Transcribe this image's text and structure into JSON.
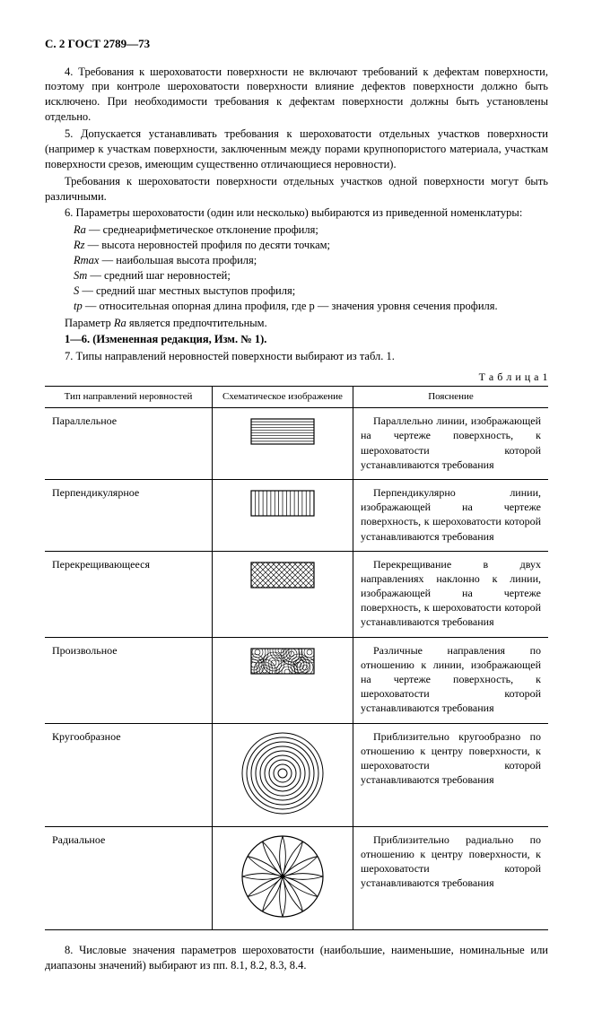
{
  "header": "С. 2 ГОСТ 2789—73",
  "paras": {
    "p4": "4. Требования к шероховатости поверхности не включают требований к дефектам поверхности, поэтому при контроле шероховатости поверхности влияние дефектов поверхности должно быть исключено. При необходимости требования к дефектам поверхности должны быть установлены отдельно.",
    "p5a": "5. Допускается устанавливать требования к шероховатости отдельных участков поверхности (например к участкам поверхности, заключенным между порами крупнопористого материала, участкам поверхности срезов, имеющим существенно отличающиеся неровности).",
    "p5b": "Требования к шероховатости поверхности отдельных участков одной поверхности могут быть различными.",
    "p6": "6. Параметры шероховатости (один или несколько) выбираются из приведенной номенклатуры:",
    "params": {
      "Ra": "среднеарифметическое отклонение профиля;",
      "Rz": "высота неровностей профиля по десяти точкам;",
      "Rmax": "наибольшая высота профиля;",
      "Sm": "средний шаг неровностей;",
      "S": "средний шаг местных выступов профиля;",
      "tp": "относительная опорная длина профиля, где p — значения уровня сечения профиля."
    },
    "p6b": "Параметр Ra является предпочтительным.",
    "p6c": "1—6. (Измененная редакция, Изм. № 1).",
    "p7": "7. Типы направлений неровностей поверхности выбирают из табл. 1.",
    "p8": "8. Числовые значения параметров шероховатости (наибольшие, наименьшие, номинальные или диапазоны значений) выбирают из пп. 8.1, 8.2, 8.3, 8.4."
  },
  "table": {
    "caption": "Т а б л и ц а 1",
    "headers": [
      "Тип направлений неровностей",
      "Схематическое изображение",
      "Пояснение"
    ],
    "rows": [
      {
        "type": "Параллельное",
        "desc": "Параллельно линии, изображающей на чертеже поверхность, к шероховатости которой устанавливаются требования"
      },
      {
        "type": "Перпендикулярное",
        "desc": "Перпендикулярно линии, изображающей на чертеже поверхность, к шероховатости которой устанавливаются требования"
      },
      {
        "type": "Перекрещивающееся",
        "desc": "Перекрещивание в двух направлениях наклонно к линии, изображающей на чертеже поверхность, к шероховатости которой устанавливаются требования"
      },
      {
        "type": "Произвольное",
        "desc": "Различные направления по отношению к линии, изображающей на чертеже поверхность, к шероховатости которой устанавливаются требования"
      },
      {
        "type": "Кругообразное",
        "desc": "Приблизительно кругообразно по отношению к центру поверхности, к шероховатости которой устанавливаются требования"
      },
      {
        "type": "Радиальное",
        "desc": "Приблизительно радиально по отношению к центру поверхности, к шероховатости которой устанавливаются требования"
      }
    ]
  },
  "style": {
    "schem_rect": {
      "w": 70,
      "h": 28,
      "stroke": "#000",
      "fill": "#fff"
    },
    "circle_outer_r": 45,
    "radial_outer_r": 45
  }
}
